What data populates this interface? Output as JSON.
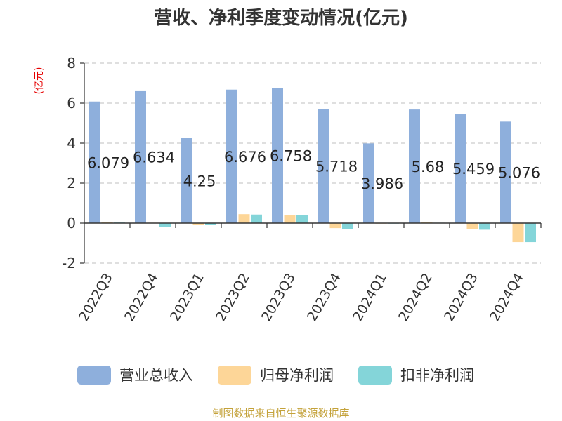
{
  "chart_data": {
    "type": "bar",
    "title": "营收、净利季度变动情况(亿元)",
    "ylabel": "(亿元)",
    "ylim": [
      -2,
      8
    ],
    "yticks": [
      8,
      6,
      4,
      2,
      0,
      -2
    ],
    "grid": true,
    "legend_position": "bottom",
    "categories": [
      "2022Q3",
      "2022Q4",
      "2023Q1",
      "2023Q2",
      "2023Q3",
      "2023Q4",
      "2024Q1",
      "2024Q2",
      "2024Q3",
      "2024Q4"
    ],
    "series": [
      {
        "name": "营业总收入",
        "color": "#8eafdc",
        "values": [
          6.079,
          6.634,
          4.25,
          6.676,
          6.758,
          5.718,
          3.986,
          5.68,
          5.459,
          5.076
        ]
      },
      {
        "name": "归母净利润",
        "color": "#fdd698",
        "values": [
          0.05,
          0.02,
          -0.08,
          0.45,
          0.42,
          -0.25,
          0.01,
          0.04,
          -0.3,
          -0.95
        ]
      },
      {
        "name": "扣非净利润",
        "color": "#84d5d9",
        "values": [
          0.03,
          -0.18,
          -0.1,
          0.43,
          0.42,
          -0.3,
          0.01,
          0.02,
          -0.33,
          -0.95
        ]
      }
    ],
    "data_labels": [
      "6.079",
      "6.634",
      "4.25",
      "6.676",
      "6.758",
      "5.718",
      "3.986",
      "5.68",
      "5.459",
      "5.076"
    ],
    "ylabel_color": "#e60000"
  },
  "source_text": "制图数据来自恒生聚源数据库",
  "source_color": "#c4a23a"
}
